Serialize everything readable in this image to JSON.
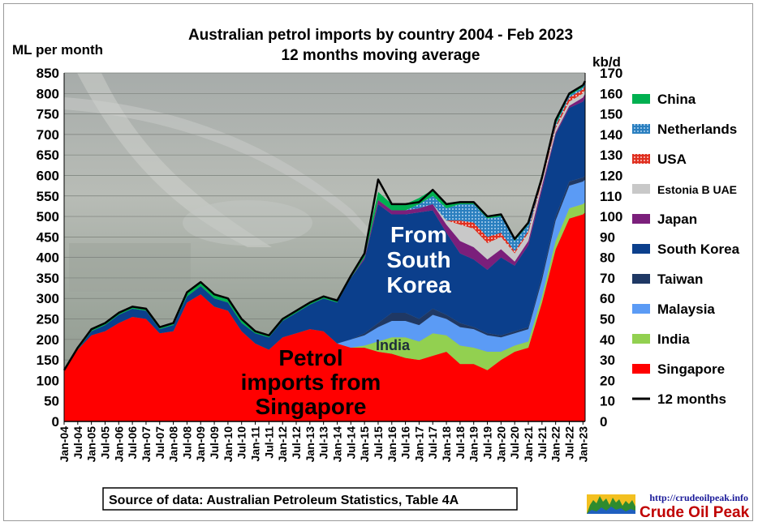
{
  "chart_data": {
    "type": "area",
    "title_line1": "Australian  petrol  imports  by  country  2004 - Feb 2023",
    "title_line2": "12 months moving average",
    "ylabel_left": "ML per month",
    "ylabel_right": "kb/d",
    "ylim_left": [
      0,
      850
    ],
    "ylim_right": [
      0,
      170
    ],
    "yticks_left": [
      0,
      50,
      100,
      150,
      200,
      250,
      300,
      350,
      400,
      450,
      500,
      550,
      600,
      650,
      700,
      750,
      800,
      850
    ],
    "yticks_right": [
      0,
      10,
      20,
      30,
      40,
      50,
      60,
      70,
      80,
      90,
      100,
      110,
      120,
      130,
      140,
      150,
      160,
      170
    ],
    "x_tick_labels": [
      "Jan-04",
      "Jul-04",
      "Jan-05",
      "Jul-05",
      "Jan-06",
      "Jul-06",
      "Jan-07",
      "Jul-07",
      "Jan-08",
      "Jul-08",
      "Jan-09",
      "Jul-09",
      "Jan-10",
      "Jul-10",
      "Jan-11",
      "Jul-11",
      "Jan-12",
      "Jul-12",
      "Jan-13",
      "Jul-13",
      "Jan-14",
      "Jul-14",
      "Jan-15",
      "Jul-15",
      "Jan-16",
      "Jul-16",
      "Jan-17",
      "Jul-17",
      "Jan-18",
      "Jul-18",
      "Jan-19",
      "Jul-19",
      "Jan-20",
      "Jul-20",
      "Jan-21",
      "Jul-21",
      "Jan-22",
      "Jul-22",
      "Jan-23"
    ],
    "x": [
      2004.0,
      2004.5,
      2005.0,
      2005.5,
      2006.0,
      2006.5,
      2007.0,
      2007.5,
      2008.0,
      2008.5,
      2009.0,
      2009.5,
      2010.0,
      2010.5,
      2011.0,
      2011.5,
      2012.0,
      2012.5,
      2013.0,
      2013.5,
      2014.0,
      2014.5,
      2015.0,
      2015.5,
      2016.0,
      2016.5,
      2017.0,
      2017.5,
      2018.0,
      2018.5,
      2019.0,
      2019.5,
      2020.0,
      2020.5,
      2021.0,
      2021.5,
      2022.0,
      2022.5,
      2023.0,
      2023.08
    ],
    "series": [
      {
        "name": "Singapore",
        "color": "#ff0000",
        "values": [
          125,
          175,
          210,
          220,
          240,
          255,
          250,
          215,
          220,
          290,
          310,
          280,
          270,
          220,
          190,
          175,
          205,
          215,
          225,
          220,
          190,
          180,
          180,
          170,
          165,
          155,
          150,
          160,
          170,
          140,
          140,
          125,
          150,
          170,
          180,
          290,
          420,
          495,
          505,
          510
        ]
      },
      {
        "name": "India",
        "color": "#92d050",
        "values": [
          0,
          0,
          0,
          0,
          0,
          0,
          0,
          0,
          0,
          0,
          0,
          0,
          0,
          0,
          0,
          0,
          0,
          0,
          0,
          0,
          0,
          0,
          5,
          25,
          40,
          50,
          45,
          55,
          40,
          45,
          40,
          45,
          20,
          15,
          15,
          15,
          20,
          25,
          25,
          25
        ]
      },
      {
        "name": "Malaysia",
        "color": "#5b9bf5",
        "values": [
          0,
          0,
          0,
          0,
          0,
          0,
          0,
          0,
          0,
          0,
          0,
          0,
          0,
          0,
          0,
          0,
          0,
          0,
          0,
          0,
          0,
          20,
          25,
          35,
          40,
          40,
          40,
          45,
          40,
          45,
          45,
          40,
          35,
          30,
          30,
          40,
          50,
          55,
          55,
          55
        ]
      },
      {
        "name": "Taiwan",
        "color": "#1f3864",
        "values": [
          0,
          0,
          0,
          0,
          0,
          0,
          0,
          0,
          0,
          0,
          0,
          0,
          0,
          0,
          0,
          0,
          0,
          0,
          0,
          0,
          0,
          0,
          5,
          10,
          20,
          20,
          15,
          15,
          10,
          10,
          5,
          5,
          5,
          5,
          5,
          10,
          10,
          10,
          10,
          10
        ]
      },
      {
        "name": "South Korea",
        "color": "#0b3f8c",
        "values": [
          0,
          0,
          10,
          15,
          20,
          20,
          20,
          10,
          15,
          15,
          20,
          20,
          20,
          20,
          25,
          30,
          40,
          50,
          60,
          80,
          100,
          150,
          180,
          290,
          240,
          240,
          260,
          240,
          200,
          170,
          165,
          155,
          190,
          160,
          200,
          210,
          200,
          180,
          185,
          190
        ]
      },
      {
        "name": "Japan",
        "color": "#7b1f7b",
        "values": [
          0,
          0,
          0,
          0,
          0,
          0,
          0,
          0,
          0,
          0,
          0,
          0,
          0,
          0,
          0,
          0,
          0,
          0,
          0,
          0,
          0,
          0,
          5,
          10,
          10,
          10,
          10,
          15,
          20,
          30,
          30,
          25,
          20,
          10,
          10,
          10,
          5,
          5,
          10,
          10
        ]
      },
      {
        "name": "Estonia B UAE",
        "color": "#c8c8c8",
        "values": [
          0,
          0,
          0,
          0,
          0,
          0,
          0,
          0,
          0,
          0,
          0,
          0,
          0,
          0,
          0,
          0,
          0,
          0,
          0,
          0,
          0,
          0,
          0,
          0,
          0,
          0,
          0,
          0,
          10,
          40,
          45,
          40,
          30,
          20,
          20,
          10,
          10,
          10,
          10,
          10
        ]
      },
      {
        "name": "USA",
        "color": "#e03020",
        "values": [
          0,
          0,
          0,
          0,
          0,
          0,
          0,
          0,
          0,
          0,
          0,
          0,
          0,
          0,
          0,
          0,
          0,
          0,
          0,
          0,
          0,
          0,
          0,
          0,
          0,
          0,
          0,
          0,
          0,
          10,
          15,
          15,
          10,
          5,
          5,
          5,
          5,
          10,
          10,
          10
        ]
      },
      {
        "name": "Netherlands",
        "color": "#2a7fbf",
        "values": [
          0,
          0,
          0,
          0,
          0,
          0,
          0,
          0,
          0,
          0,
          0,
          0,
          0,
          0,
          0,
          0,
          0,
          0,
          0,
          0,
          0,
          0,
          0,
          0,
          0,
          0,
          10,
          20,
          30,
          40,
          45,
          45,
          40,
          25,
          15,
          10,
          5,
          5,
          5,
          5
        ]
      },
      {
        "name": "China",
        "color": "#00b050",
        "values": [
          0,
          5,
          5,
          5,
          5,
          5,
          5,
          5,
          5,
          10,
          10,
          10,
          10,
          10,
          5,
          5,
          5,
          5,
          5,
          5,
          5,
          5,
          10,
          20,
          15,
          15,
          15,
          15,
          10,
          5,
          5,
          5,
          5,
          5,
          5,
          5,
          5,
          5,
          5,
          5
        ]
      }
    ],
    "line_series": {
      "name": "12 months",
      "color": "#000000",
      "values": [
        125,
        180,
        225,
        240,
        265,
        280,
        275,
        230,
        240,
        315,
        340,
        310,
        300,
        250,
        220,
        210,
        250,
        270,
        290,
        305,
        295,
        355,
        410,
        590,
        530,
        530,
        535,
        565,
        530,
        535,
        535,
        500,
        505,
        445,
        485,
        595,
        735,
        800,
        820,
        830
      ]
    },
    "annotations": {
      "korea_line1": "From",
      "korea_line2": "South",
      "korea_line3": "Korea",
      "india": "India",
      "singapore_line1": "Petrol",
      "singapore_line2": "imports from",
      "singapore_line3": "Singapore"
    },
    "legend_position": "right",
    "grid": true
  },
  "legend": [
    {
      "label": "China",
      "color": "#00b050",
      "pattern": "solid"
    },
    {
      "label": "Netherlands",
      "color": "#2a7fbf",
      "pattern": "dots"
    },
    {
      "label": "USA",
      "color": "#e03020",
      "pattern": "dots"
    },
    {
      "label": "Estonia B UAE",
      "color": "#c8c8c8",
      "pattern": "solid"
    },
    {
      "label": "Japan",
      "color": "#7b1f7b",
      "pattern": "solid"
    },
    {
      "label": "South Korea",
      "color": "#0b3f8c",
      "pattern": "solid"
    },
    {
      "label": "Taiwan",
      "color": "#1f3864",
      "pattern": "solid"
    },
    {
      "label": "Malaysia",
      "color": "#5b9bf5",
      "pattern": "solid"
    },
    {
      "label": "India",
      "color": "#92d050",
      "pattern": "solid"
    },
    {
      "label": "Singapore",
      "color": "#ff0000",
      "pattern": "solid"
    },
    {
      "label": "12 months",
      "color": "#000000",
      "pattern": "line"
    }
  ],
  "footer": {
    "source": "Source of data: Australian Petroleum Statistics, Table 4A",
    "url": "http://crudeoilpeak.info",
    "brand": "Crude Oil Peak"
  }
}
